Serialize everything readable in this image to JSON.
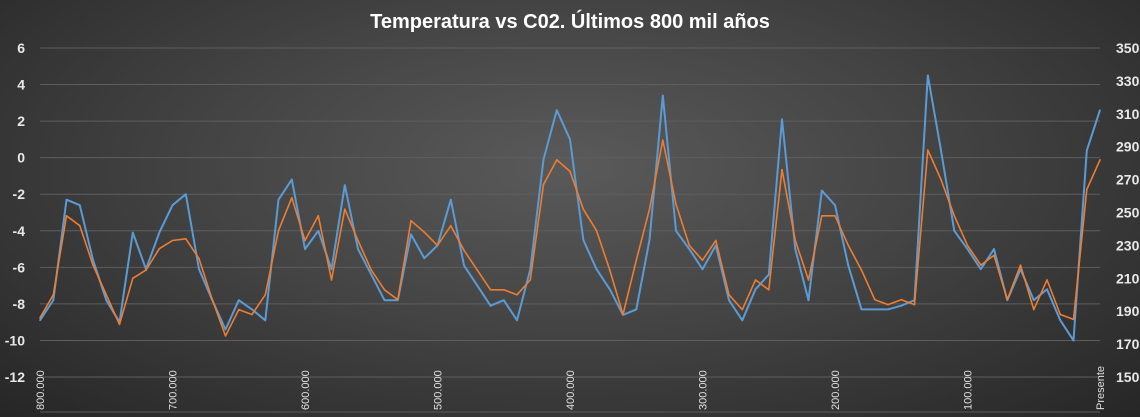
{
  "chart_data": {
    "type": "line",
    "title": "Temperatura vs C02. Últimos 800 mil años",
    "x_tick_labels": [
      "800.000",
      "700.000",
      "600.000",
      "500.000",
      "400.000",
      "300.000",
      "200.000",
      "100.000",
      "Presente"
    ],
    "x_ticks": [
      800000,
      700000,
      600000,
      500000,
      400000,
      300000,
      200000,
      100000,
      0
    ],
    "xlim": [
      800000,
      0
    ],
    "y_left": {
      "ylim": [
        -12,
        6
      ],
      "ticks": [
        -12,
        -10,
        -8,
        -6,
        -4,
        -2,
        0,
        2,
        4,
        6
      ]
    },
    "y_right": {
      "ylim": [
        150,
        350
      ],
      "ticks": [
        150,
        170,
        190,
        210,
        230,
        250,
        270,
        290,
        310,
        330,
        350
      ]
    },
    "grid": true,
    "x": [
      800000,
      790000,
      780000,
      770000,
      760000,
      750000,
      740000,
      730000,
      720000,
      710000,
      700000,
      690000,
      680000,
      670000,
      660000,
      650000,
      640000,
      630000,
      620000,
      610000,
      600000,
      590000,
      580000,
      570000,
      560000,
      550000,
      540000,
      530000,
      520000,
      510000,
      500000,
      490000,
      480000,
      470000,
      460000,
      450000,
      440000,
      430000,
      420000,
      410000,
      400000,
      390000,
      380000,
      370000,
      360000,
      350000,
      340000,
      330000,
      320000,
      310000,
      300000,
      290000,
      280000,
      270000,
      260000,
      250000,
      240000,
      230000,
      220000,
      210000,
      200000,
      190000,
      180000,
      170000,
      160000,
      150000,
      140000,
      130000,
      120000,
      110000,
      100000,
      90000,
      80000,
      70000,
      60000,
      50000,
      40000,
      30000,
      20000,
      10000,
      0
    ],
    "series": [
      {
        "axis": "left",
        "color": "#5b9bd5",
        "values": [
          -8.9,
          -7.8,
          -2.3,
          -2.6,
          -5.6,
          -7.8,
          -9.0,
          -4.1,
          -6.1,
          -4.1,
          -2.6,
          -2.0,
          -6.1,
          -7.8,
          -9.4,
          -7.8,
          -8.3,
          -8.9,
          -2.3,
          -1.2,
          -5.0,
          -4.0,
          -6.1,
          -1.5,
          -5.0,
          -6.4,
          -7.8,
          -7.8,
          -4.2,
          -5.5,
          -4.8,
          -2.3,
          -5.9,
          -7.0,
          -8.1,
          -7.8,
          -8.9,
          -6.1,
          -0.1,
          2.6,
          1.0,
          -4.5,
          -6.1,
          -7.2,
          -8.6,
          -8.3,
          -4.5,
          3.4,
          -4.0,
          -5.0,
          -6.1,
          -4.8,
          -7.8,
          -8.9,
          -7.2,
          -6.4,
          2.1,
          -5.0,
          -7.8,
          -1.8,
          -2.6,
          -5.9,
          -8.3,
          -8.3,
          -8.3,
          -8.1,
          -7.8,
          4.5,
          0.4,
          -4.0,
          -5.0,
          -6.1,
          -5.0,
          -7.8,
          -6.1,
          -7.8,
          -7.2,
          -8.9,
          -10.0,
          0.4,
          2.6
        ]
      },
      {
        "axis": "right",
        "color": "#ed7d31",
        "values": [
          186,
          200,
          248,
          242,
          218,
          200,
          182,
          210,
          215,
          228,
          233,
          234,
          222,
          197,
          175,
          191,
          188,
          200,
          239,
          259,
          233,
          248,
          209,
          252,
          233,
          215,
          203,
          197,
          245,
          238,
          230,
          242,
          227,
          215,
          203,
          203,
          200,
          209,
          267,
          282,
          275,
          252,
          239,
          215,
          188,
          221,
          252,
          294,
          255,
          230,
          221,
          233,
          200,
          191,
          209,
          203,
          276,
          233,
          209,
          248,
          248,
          230,
          215,
          197,
          194,
          197,
          194,
          288,
          270,
          248,
          230,
          218,
          224,
          197,
          218,
          191,
          209,
          188,
          185,
          264,
          282
        ]
      }
    ]
  }
}
